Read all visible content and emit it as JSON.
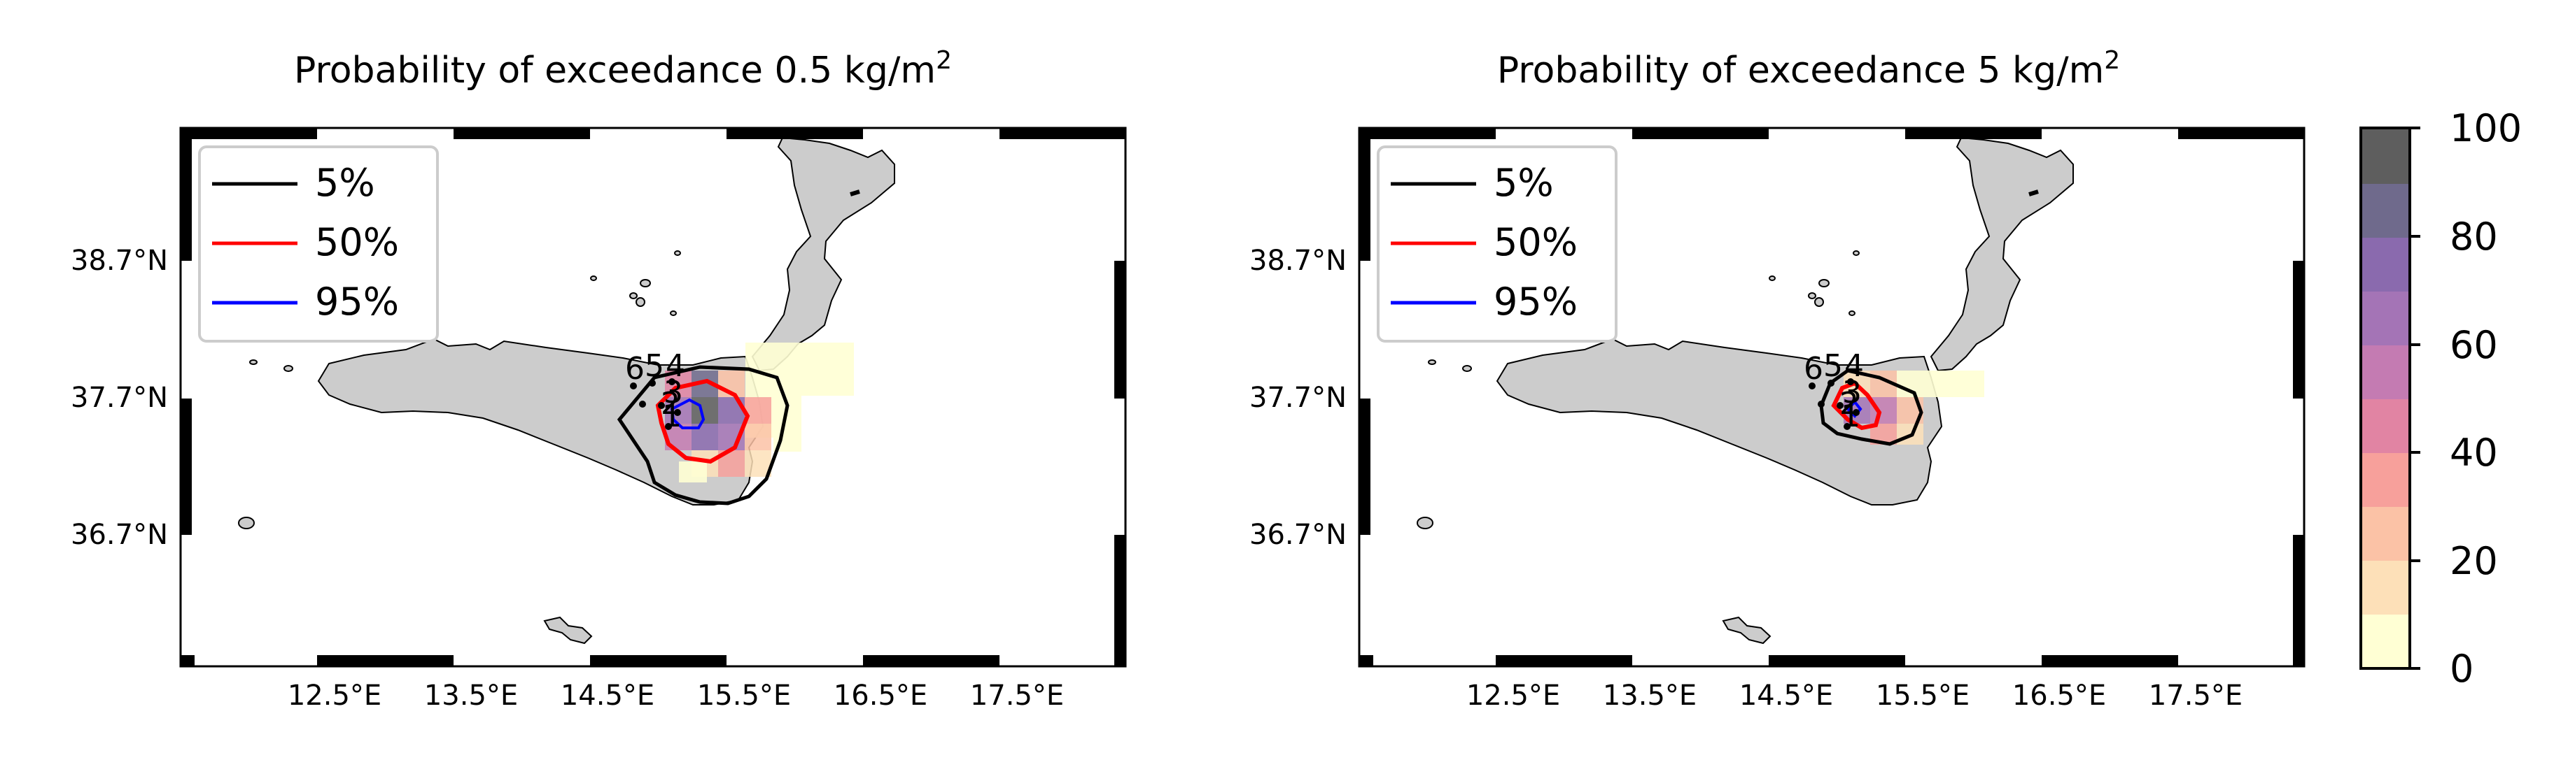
{
  "figure": {
    "panels": [
      {
        "id": "left",
        "title": "Probability of exceedance 0.5 kg/m",
        "title_superscript": "2",
        "x_ticks": [
          "12.5°E",
          "13.5°E",
          "14.5°E",
          "15.5°E",
          "16.5°E",
          "17.5°E"
        ],
        "y_ticks": [
          "38.7°N",
          "37.7°N",
          "36.7°N"
        ],
        "legend": [
          {
            "label": "5%",
            "color": "#000000"
          },
          {
            "label": "50%",
            "color": "#ff0000"
          },
          {
            "label": "95%",
            "color": "#0000ff"
          }
        ],
        "vent_labels": [
          "6",
          "5",
          "4",
          "3",
          "2",
          "1"
        ]
      },
      {
        "id": "right",
        "title": "Probability of exceedance 5 kg/m",
        "title_superscript": "2",
        "x_ticks": [
          "12.5°E",
          "13.5°E",
          "14.5°E",
          "15.5°E",
          "16.5°E",
          "17.5°E"
        ],
        "y_ticks": [
          "38.7°N",
          "37.7°N",
          "36.7°N"
        ],
        "legend": [
          {
            "label": "5%",
            "color": "#000000"
          },
          {
            "label": "50%",
            "color": "#ff0000"
          },
          {
            "label": "95%",
            "color": "#0000ff"
          }
        ],
        "vent_labels": [
          "6",
          "5",
          "4",
          "3",
          "2",
          "1"
        ]
      }
    ],
    "colorbar": {
      "ticks": [
        "0",
        "20",
        "40",
        "60",
        "80",
        "100"
      ],
      "levels": [
        "#ffffd4",
        "#fde0b8",
        "#fbc2a6",
        "#f7a09b",
        "#e184a3",
        "#c47bb2",
        "#a474b6",
        "#8a6aae",
        "#6f6a8c",
        "#5e5e5e"
      ]
    },
    "colors": {
      "land": "#cccccc",
      "frame": "#000000"
    }
  }
}
